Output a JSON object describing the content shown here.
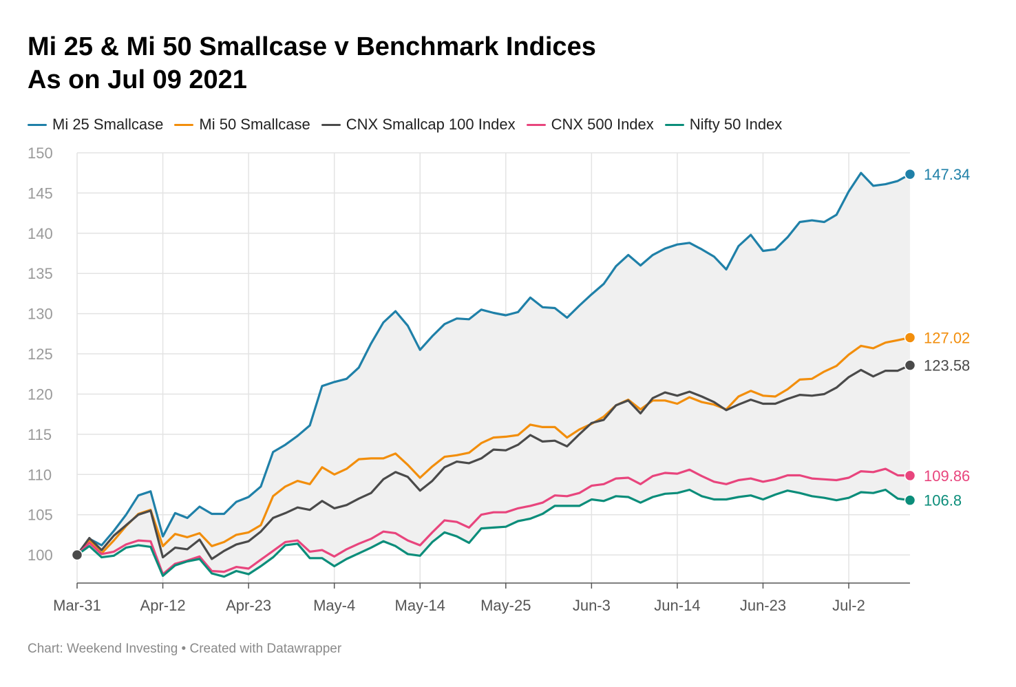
{
  "title_line1": "Mi 25 & Mi 50 Smallcase v Benchmark Indices",
  "title_line2": "As on Jul 09 2021",
  "footer": "Chart: Weekend Investing • Created with Datawrapper",
  "chart_data": {
    "type": "line",
    "title": "Mi 25 & Mi 50 Smallcase v Benchmark Indices",
    "subtitle": "As on Jul 09 2021",
    "xlabel": "",
    "ylabel": "",
    "ylim": [
      96.5,
      150
    ],
    "yticks": [
      100,
      105,
      110,
      115,
      120,
      125,
      130,
      135,
      140,
      145,
      150
    ],
    "xtick_labels": [
      "Mar-31",
      "Apr-12",
      "Apr-23",
      "May-4",
      "May-14",
      "May-25",
      "Jun-3",
      "Jun-14",
      "Jun-23",
      "Jul-2"
    ],
    "xtick_index": [
      0,
      7,
      14,
      21,
      28,
      35,
      42,
      49,
      56,
      63
    ],
    "grid": true,
    "legend_position": "top-left",
    "shaded_range_between": [
      "Mi 25 Smallcase",
      "Nifty 50 Index"
    ],
    "x": [
      0,
      1,
      2,
      3,
      4,
      5,
      6,
      7,
      8,
      9,
      10,
      11,
      12,
      13,
      14,
      15,
      16,
      17,
      18,
      19,
      20,
      21,
      22,
      23,
      24,
      25,
      26,
      27,
      28,
      29,
      30,
      31,
      32,
      33,
      34,
      35,
      36,
      37,
      38,
      39,
      40,
      41,
      42,
      43,
      44,
      45,
      46,
      47,
      48,
      49,
      50,
      51,
      52,
      53,
      54,
      55,
      56,
      57,
      58,
      59,
      60,
      61,
      62,
      63,
      64,
      65,
      66,
      67,
      68
    ],
    "series": [
      {
        "name": "Mi 25 Smallcase",
        "color": "#1f80a8",
        "end_label": "147.34",
        "values": [
          100,
          102,
          101.2,
          103,
          105,
          107.4,
          107.9,
          102.3,
          105.2,
          104.6,
          106,
          105.1,
          105.1,
          106.6,
          107.2,
          108.5,
          112.8,
          113.7,
          114.8,
          116.1,
          121,
          121.5,
          121.9,
          123.3,
          126.3,
          128.9,
          130.3,
          128.5,
          125.5,
          127.2,
          128.7,
          129.4,
          129.3,
          130.5,
          130.1,
          129.8,
          130.2,
          132,
          130.8,
          130.7,
          129.5,
          131,
          132.4,
          133.7,
          135.9,
          137.3,
          136,
          137.3,
          138.1,
          138.6,
          138.8,
          138,
          137.1,
          135.5,
          138.4,
          139.8,
          137.8,
          138,
          139.5,
          141.4,
          141.6,
          141.4,
          142.3,
          145.2,
          147.5,
          145.9,
          146.1,
          146.5,
          147.34
        ]
      },
      {
        "name": "Mi 50 Smallcase",
        "color": "#f28e0c",
        "end_label": "127.02",
        "values": [
          100,
          101.8,
          100.2,
          101.8,
          103.6,
          105.1,
          105.6,
          101.1,
          102.6,
          102.2,
          102.7,
          101.1,
          101.6,
          102.5,
          102.8,
          103.7,
          107.3,
          108.5,
          109.2,
          108.8,
          110.9,
          110,
          110.7,
          111.9,
          112,
          112,
          112.6,
          111.2,
          109.6,
          111,
          112.2,
          112.4,
          112.7,
          113.9,
          114.6,
          114.7,
          114.9,
          116.2,
          115.9,
          115.9,
          114.6,
          115.6,
          116.3,
          117.2,
          118.6,
          119.3,
          118.1,
          119.2,
          119.2,
          118.8,
          119.6,
          119,
          118.7,
          118.1,
          119.7,
          120.4,
          119.8,
          119.7,
          120.6,
          121.8,
          121.9,
          122.8,
          123.5,
          124.9,
          126,
          125.7,
          126.4,
          126.7,
          127.02
        ]
      },
      {
        "name": "CNX Smallcap 100 Index",
        "color": "#4a4a4a",
        "end_label": "123.58",
        "values": [
          100,
          102.1,
          100.6,
          102.4,
          103.7,
          105,
          105.5,
          99.7,
          100.9,
          100.7,
          101.9,
          99.5,
          100.5,
          101.3,
          101.7,
          102.9,
          104.6,
          105.2,
          105.9,
          105.6,
          106.7,
          105.8,
          106.2,
          107,
          107.7,
          109.4,
          110.3,
          109.7,
          108,
          109.2,
          110.9,
          111.6,
          111.4,
          112,
          113.1,
          113,
          113.7,
          114.9,
          114.1,
          114.2,
          113.5,
          115,
          116.4,
          116.8,
          118.6,
          119.2,
          117.6,
          119.5,
          120.2,
          119.8,
          120.3,
          119.7,
          119,
          118,
          118.7,
          119.3,
          118.8,
          118.8,
          119.4,
          119.9,
          119.8,
          120,
          120.8,
          122.1,
          123,
          122.2,
          122.9,
          122.9,
          123.58
        ]
      },
      {
        "name": "CNX 500 Index",
        "color": "#e8457d",
        "end_label": "109.86",
        "values": [
          100,
          101.5,
          100.1,
          100.4,
          101.3,
          101.8,
          101.7,
          97.6,
          98.9,
          99.3,
          99.8,
          98,
          97.9,
          98.5,
          98.3,
          99.4,
          100.5,
          101.6,
          101.8,
          100.4,
          100.6,
          99.8,
          100.7,
          101.4,
          102,
          102.9,
          102.7,
          101.8,
          101.2,
          102.8,
          104.3,
          104.1,
          103.4,
          105,
          105.3,
          105.3,
          105.8,
          106.1,
          106.5,
          107.4,
          107.3,
          107.7,
          108.6,
          108.8,
          109.5,
          109.6,
          108.8,
          109.8,
          110.2,
          110.1,
          110.6,
          109.8,
          109.1,
          108.8,
          109.3,
          109.5,
          109.1,
          109.4,
          109.9,
          109.9,
          109.5,
          109.4,
          109.3,
          109.6,
          110.4,
          110.3,
          110.7,
          109.9,
          109.86
        ]
      },
      {
        "name": "Nifty 50 Index",
        "color": "#0b8d7a",
        "end_label": "106.8",
        "values": [
          100,
          101.1,
          99.7,
          99.9,
          100.9,
          101.2,
          101,
          97.4,
          98.7,
          99.2,
          99.5,
          97.7,
          97.3,
          98,
          97.6,
          98.6,
          99.7,
          101.2,
          101.4,
          99.6,
          99.6,
          98.6,
          99.5,
          100.2,
          100.9,
          101.7,
          101.1,
          100.1,
          99.9,
          101.6,
          102.8,
          102.3,
          101.5,
          103.3,
          103.4,
          103.5,
          104.2,
          104.5,
          105.1,
          106.1,
          106.1,
          106.1,
          106.9,
          106.7,
          107.3,
          107.2,
          106.5,
          107.2,
          107.6,
          107.7,
          108.1,
          107.3,
          106.9,
          106.9,
          107.2,
          107.4,
          106.9,
          107.5,
          108,
          107.7,
          107.3,
          107.1,
          106.8,
          107.1,
          107.8,
          107.7,
          108.1,
          107,
          106.8
        ]
      }
    ]
  }
}
